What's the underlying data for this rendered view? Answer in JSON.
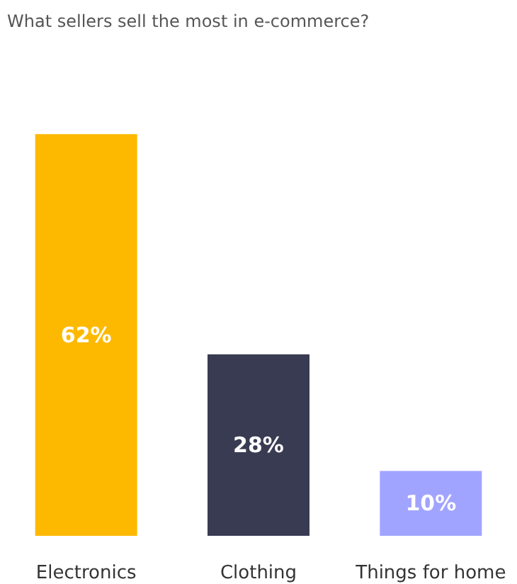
{
  "chart_data": {
    "type": "bar",
    "title": "What sellers sell the most in e-commerce?",
    "categories": [
      "Electronics",
      "Clothing",
      "Things for home"
    ],
    "values": [
      62,
      28,
      10
    ],
    "value_labels": [
      "62%",
      "28%",
      "10%"
    ],
    "colors": [
      "#fdb900",
      "#393b52",
      "#a1a4ff"
    ]
  }
}
